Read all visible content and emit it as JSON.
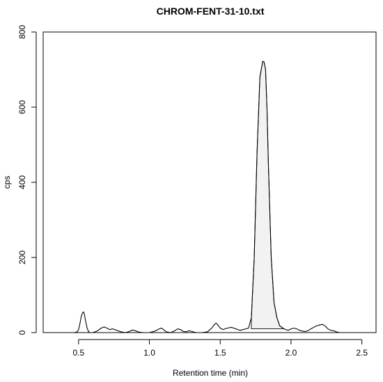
{
  "colors": {
    "background": "#ffffff",
    "line": "#000000",
    "peak_fill": "#f2f2f2"
  },
  "chart_data": {
    "type": "line",
    "title": "CHROM-FENT-31-10.txt",
    "xlabel": "Retention time (min)",
    "ylabel": "cps",
    "xlim": [
      0.25,
      2.6
    ],
    "ylim": [
      0,
      800
    ],
    "x_ticks": [
      0.5,
      1.0,
      1.5,
      2.0,
      2.5
    ],
    "x_tick_labels": [
      "0.5",
      "1.0",
      "1.5",
      "2.0",
      "2.5"
    ],
    "y_ticks": [
      0,
      200,
      400,
      600,
      800
    ],
    "y_tick_labels": [
      "0",
      "200",
      "400",
      "600",
      "800"
    ],
    "grid": false,
    "legend": "none",
    "series": [
      {
        "x": [
          0.47,
          0.49,
          0.5,
          0.51,
          0.52,
          0.53,
          0.535,
          0.54,
          0.55,
          0.56,
          0.57,
          0.58,
          0.6,
          0.63,
          0.66,
          0.68,
          0.7,
          0.72,
          0.74,
          0.77,
          0.8,
          0.83,
          0.86,
          0.88,
          0.9,
          0.93,
          0.96,
          1.0,
          1.04,
          1.07,
          1.085,
          1.1,
          1.12,
          1.15,
          1.18,
          1.2,
          1.22,
          1.24,
          1.26,
          1.28,
          1.3,
          1.33,
          1.37,
          1.41,
          1.44,
          1.46,
          1.47,
          1.48,
          1.5,
          1.52,
          1.55,
          1.58,
          1.61,
          1.64,
          1.66,
          1.68,
          1.7,
          1.72,
          1.74,
          1.76,
          1.78,
          1.8,
          1.81,
          1.82,
          1.83,
          1.84,
          1.86,
          1.88,
          1.9,
          1.92,
          1.95,
          1.98,
          2.0,
          2.02,
          2.04,
          2.06,
          2.08,
          2.1,
          2.12,
          2.14,
          2.16,
          2.18,
          2.2,
          2.22,
          2.24,
          2.26,
          2.28,
          2.3,
          2.32,
          2.34
        ],
        "y": [
          0,
          2,
          8,
          25,
          45,
          54,
          55,
          50,
          30,
          12,
          3,
          0,
          0,
          4,
          12,
          15,
          12,
          8,
          10,
          6,
          2,
          0,
          3,
          7,
          5,
          1,
          0,
          0,
          4,
          10,
          12,
          8,
          2,
          0,
          5,
          10,
          8,
          3,
          2,
          5,
          3,
          0,
          0,
          2,
          12,
          22,
          25,
          22,
          12,
          8,
          12,
          14,
          10,
          6,
          8,
          10,
          12,
          40,
          200,
          480,
          680,
          722,
          720,
          700,
          600,
          450,
          200,
          80,
          40,
          18,
          10,
          6,
          10,
          12,
          10,
          6,
          4,
          3,
          5,
          10,
          14,
          18,
          20,
          22,
          18,
          10,
          6,
          5,
          2,
          0
        ]
      }
    ],
    "shaded_peak": {
      "x_start": 1.72,
      "x_end": 1.95,
      "baseline_start_y": 10,
      "baseline_end_y": 10
    }
  }
}
